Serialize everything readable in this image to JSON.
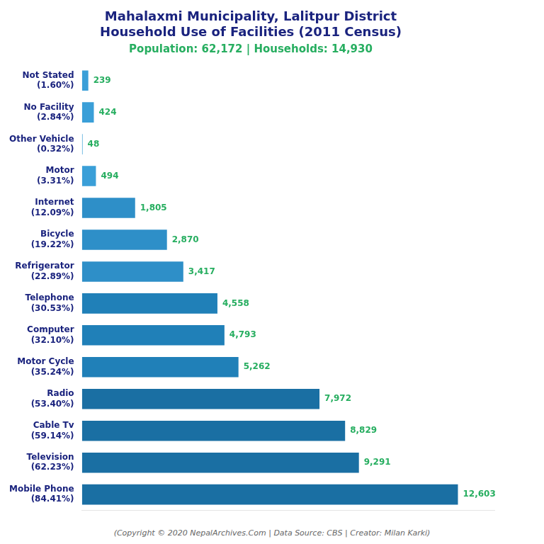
{
  "chart_data": {
    "type": "bar",
    "orientation": "horizontal",
    "title": "Mahalaxmi Municipality, Lalitpur District\nHousehold Use of Facilities (2011 Census)",
    "subtitle": "Population: 62,172 | Households: 14,930",
    "annotations": [
      "(Copyright © 2020 NepalArchives.Com | Data Source: CBS | Creator: Milan Karki)"
    ],
    "categories": [
      "Mobile Phone\n(84.41%)",
      "Television\n(62.23%)",
      "Cable Tv\n(59.14%)",
      "Radio\n(53.40%)",
      "Motor Cycle\n(35.24%)",
      "Computer\n(32.10%)",
      "Telephone\n(30.53%)",
      "Refrigerator\n(22.89%)",
      "Bicycle\n(19.22%)",
      "Internet\n(12.09%)",
      "Motor\n(3.31%)",
      "Other Vehicle\n(0.32%)",
      "No Facility\n(2.84%)",
      "Not Stated\n(1.60%)"
    ],
    "values": [
      12603,
      9291,
      8829,
      7972,
      5262,
      4793,
      4558,
      3417,
      2870,
      1805,
      494,
      48,
      424,
      239
    ],
    "value_labels": [
      "12,603",
      "9,291",
      "8,829",
      "7,972",
      "5,262",
      "4,793",
      "4,558",
      "3,417",
      "2,870",
      "1,805",
      "494",
      "48",
      "424",
      "239"
    ],
    "colors": [
      "#1a6fa3",
      "#1a6fa3",
      "#1a6fa3",
      "#1a6fa3",
      "#2080b8",
      "#2080b8",
      "#2080b8",
      "#2e8fc8",
      "#2e8fc8",
      "#2e8fc8",
      "#3a9fd8",
      "#3a9fd8",
      "#3a9fd8",
      "#3a9fd8"
    ],
    "data_labels": true,
    "xlim": [
      0,
      13800
    ],
    "grid": false,
    "tick_labels": "y"
  }
}
